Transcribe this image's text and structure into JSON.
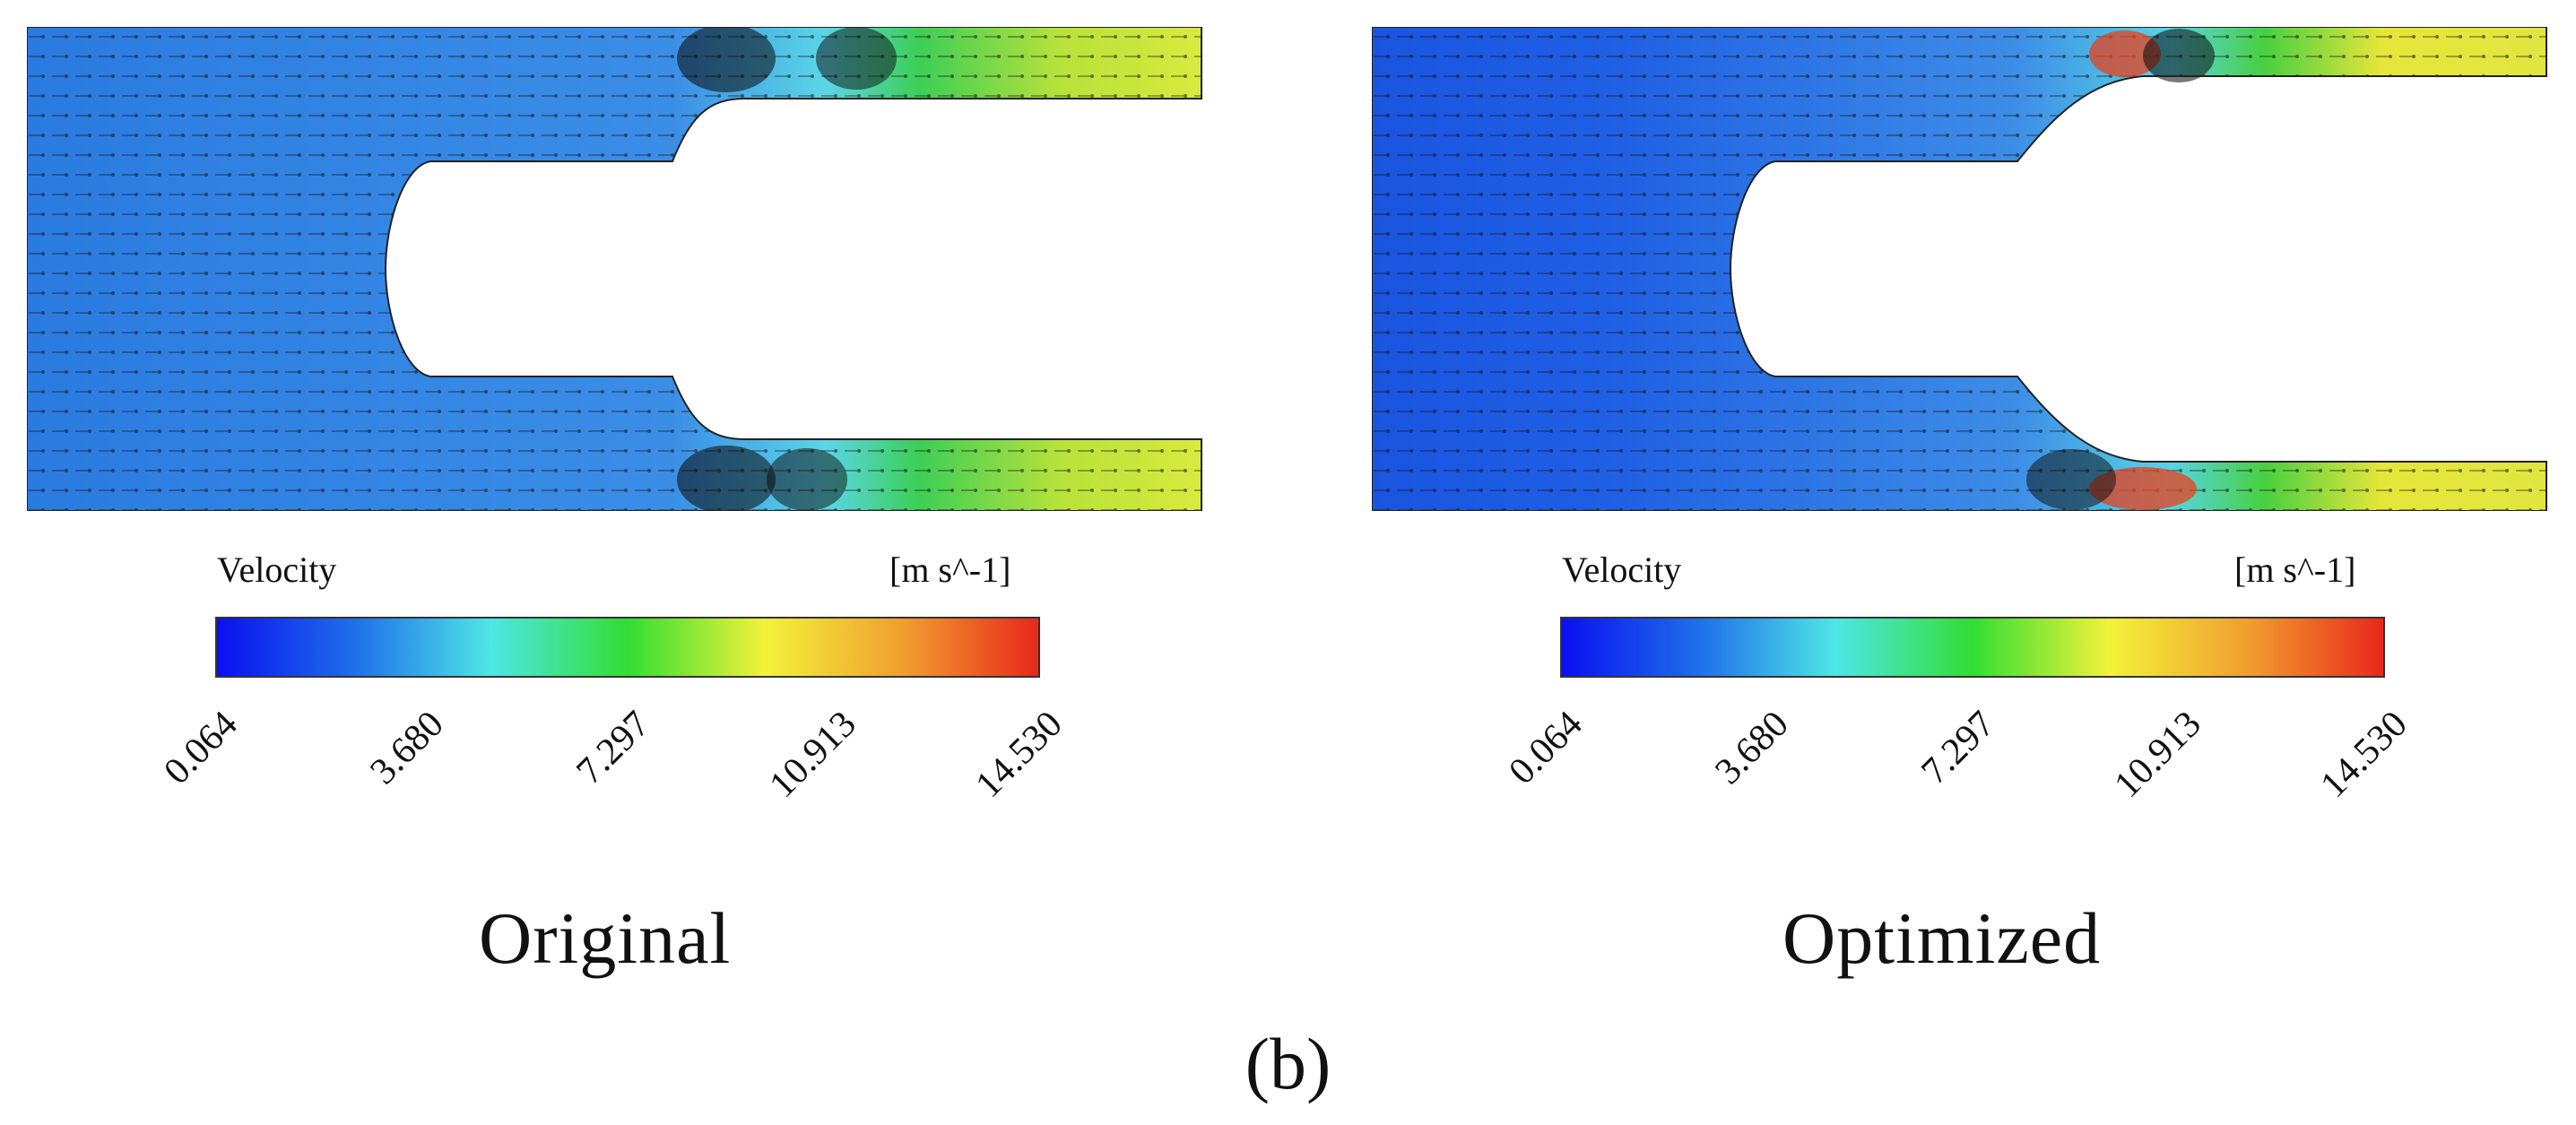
{
  "figure": {
    "sublabel": "(b)",
    "panels": [
      {
        "caption": "Original",
        "legend": {
          "title": "Velocity",
          "unit": "[m s^-1]",
          "ticks": [
            "0.064",
            "3.680",
            "7.297",
            "10.913",
            "14.530"
          ]
        }
      },
      {
        "caption": "Optimized",
        "legend": {
          "title": "Velocity",
          "unit": "[m s^-1]",
          "ticks": [
            "0.064",
            "3.680",
            "7.297",
            "10.913",
            "14.530"
          ]
        }
      }
    ]
  },
  "colors": {
    "scale": [
      "#0a10f0",
      "#1f6fe8",
      "#4fe6e6",
      "#33dd33",
      "#f2f23a",
      "#f0a030",
      "#e8281c"
    ],
    "domain_low": "#2f7ee0",
    "domain_mid": "#4aa2ea",
    "outlet_high": "#d4e63a"
  }
}
